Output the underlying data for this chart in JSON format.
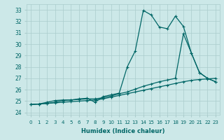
{
  "title": "",
  "xlabel": "Humidex (Indice chaleur)",
  "background_color": "#cce8e8",
  "grid_color": "#aacccc",
  "line_color": "#006666",
  "xlim": [
    -0.5,
    23.5
  ],
  "ylim": [
    23.8,
    33.5
  ],
  "yticks": [
    24,
    25,
    26,
    27,
    28,
    29,
    30,
    31,
    32,
    33
  ],
  "xticks": [
    0,
    1,
    2,
    3,
    4,
    5,
    6,
    7,
    8,
    9,
    10,
    11,
    12,
    13,
    14,
    15,
    16,
    17,
    18,
    19,
    20,
    21,
    22,
    23
  ],
  "series": [
    {
      "x": [
        0,
        1,
        2,
        3,
        4,
        5,
        6,
        7,
        8,
        9,
        10,
        11,
        12,
        13,
        14,
        15,
        16,
        17,
        18,
        19,
        20,
        21,
        22,
        23
      ],
      "y": [
        24.7,
        24.75,
        24.8,
        24.85,
        24.9,
        24.95,
        25.0,
        25.05,
        25.1,
        25.2,
        25.35,
        25.5,
        25.65,
        25.8,
        25.95,
        26.1,
        26.25,
        26.4,
        26.55,
        26.7,
        26.82,
        26.9,
        26.95,
        27.0
      ]
    },
    {
      "x": [
        0,
        1,
        2,
        3,
        4,
        5,
        6,
        7,
        8,
        9,
        10,
        11,
        12,
        13,
        14,
        15,
        16,
        17,
        18,
        19,
        20,
        21,
        22,
        23
      ],
      "y": [
        24.7,
        24.75,
        24.8,
        24.9,
        25.05,
        25.1,
        25.15,
        25.2,
        25.2,
        25.3,
        25.45,
        25.65,
        25.8,
        26.05,
        26.3,
        26.5,
        26.7,
        26.85,
        27.0,
        30.9,
        29.2,
        27.5,
        27.0,
        26.7
      ]
    },
    {
      "x": [
        0,
        1,
        2,
        3,
        4,
        5,
        6,
        7,
        8,
        9,
        10,
        11,
        12,
        13,
        14,
        15,
        16,
        17,
        18,
        19,
        20,
        21,
        22,
        23
      ],
      "y": [
        24.7,
        24.75,
        24.9,
        25.05,
        25.1,
        25.1,
        25.2,
        25.25,
        24.9,
        25.4,
        25.55,
        25.7,
        28.0,
        29.4,
        32.95,
        32.55,
        31.5,
        31.35,
        32.45,
        31.55,
        29.2,
        27.5,
        27.0,
        26.7
      ]
    }
  ]
}
